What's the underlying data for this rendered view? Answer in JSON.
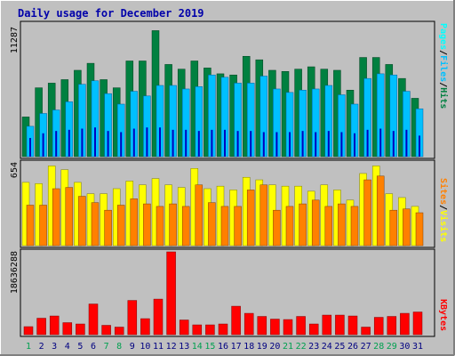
{
  "title": "Daily usage for December 2019",
  "colors": {
    "background": "#c0c0c0",
    "plot_background": "#c0c0c0",
    "title": "#0000aa",
    "hits": "#008040",
    "files": "#00c0ff",
    "pages": "#00ffff",
    "visits": "#ffff00",
    "sites": "#ff8000",
    "kbytes": "#ff0000",
    "weekend_label": "#00a050",
    "weekday_label": "#000080"
  },
  "chart_data": [
    {
      "type": "bar",
      "panel": "hits-files-pages",
      "ymax_label": "11287",
      "ylim": [
        0,
        11287
      ],
      "legend": [
        "Pages",
        "/",
        "Files",
        "/",
        "Hits"
      ],
      "categories": [
        "1",
        "2",
        "3",
        "4",
        "5",
        "6",
        "7",
        "8",
        "9",
        "10",
        "11",
        "12",
        "13",
        "14",
        "15",
        "16",
        "17",
        "18",
        "19",
        "20",
        "21",
        "22",
        "23",
        "24",
        "25",
        "26",
        "27",
        "28",
        "29",
        "30",
        "31"
      ],
      "series": [
        {
          "name": "Hits",
          "values": [
            3400,
            5900,
            6300,
            6600,
            7400,
            8000,
            6600,
            5900,
            8200,
            8200,
            10800,
            7900,
            7500,
            8200,
            7600,
            7100,
            7000,
            8600,
            8300,
            7400,
            7300,
            7500,
            7700,
            7500,
            7400,
            5700,
            8500,
            8500,
            7900,
            6700,
            5000
          ]
        },
        {
          "name": "Files",
          "values": [
            2600,
            3700,
            4000,
            4700,
            6200,
            6500,
            5400,
            4500,
            5600,
            5200,
            6100,
            6100,
            5800,
            6000,
            7000,
            6800,
            6300,
            6300,
            6900,
            5800,
            5500,
            5700,
            5800,
            6100,
            5300,
            4500,
            6700,
            7100,
            7000,
            5600,
            4100
          ]
        },
        {
          "name": "Pages",
          "values": [
            1600,
            2000,
            2200,
            2300,
            2400,
            2500,
            2200,
            2100,
            2400,
            2500,
            2500,
            2300,
            2300,
            2200,
            2300,
            2300,
            2200,
            2200,
            2100,
            2100,
            2100,
            2200,
            2100,
            2200,
            2100,
            2000,
            2300,
            2400,
            2200,
            2300,
            1800
          ]
        }
      ]
    },
    {
      "type": "bar",
      "panel": "visits-sites",
      "ymax_label": "654",
      "ylim": [
        0,
        654
      ],
      "legend": [
        "Sites",
        "/",
        "Visits"
      ],
      "categories": [
        "1",
        "2",
        "3",
        "4",
        "5",
        "6",
        "7",
        "8",
        "9",
        "10",
        "11",
        "12",
        "13",
        "14",
        "15",
        "16",
        "17",
        "18",
        "19",
        "20",
        "21",
        "22",
        "23",
        "24",
        "25",
        "26",
        "27",
        "28",
        "29",
        "30",
        "31"
      ],
      "series": [
        {
          "name": "Visits",
          "values": [
            500,
            490,
            630,
            600,
            500,
            410,
            410,
            450,
            510,
            480,
            530,
            480,
            460,
            610,
            450,
            470,
            440,
            540,
            520,
            480,
            470,
            470,
            430,
            480,
            440,
            360,
            570,
            630,
            410,
            380,
            310
          ]
        },
        {
          "name": "Sites",
          "values": [
            320,
            320,
            450,
            460,
            390,
            340,
            280,
            320,
            370,
            330,
            310,
            330,
            310,
            480,
            340,
            310,
            310,
            440,
            480,
            280,
            310,
            330,
            360,
            310,
            330,
            310,
            520,
            550,
            280,
            290,
            260
          ]
        }
      ]
    },
    {
      "type": "bar",
      "panel": "kbytes",
      "ymax_label": "18636288",
      "ylim": [
        0,
        18636288
      ],
      "legend": [
        "KBytes"
      ],
      "categories": [
        "1",
        "2",
        "3",
        "4",
        "5",
        "6",
        "7",
        "8",
        "9",
        "10",
        "11",
        "12",
        "13",
        "14",
        "15",
        "16",
        "17",
        "18",
        "19",
        "20",
        "21",
        "22",
        "23",
        "24",
        "25",
        "26",
        "27",
        "28",
        "29",
        "30",
        "31"
      ],
      "series": [
        {
          "name": "KBytes",
          "values": [
            1800000,
            3700000,
            4200000,
            2700000,
            2400000,
            6900000,
            2100000,
            1700000,
            7700000,
            3600000,
            8000000,
            18636288,
            3300000,
            2200000,
            2200000,
            2400000,
            6400000,
            4800000,
            4100000,
            3500000,
            3400000,
            4100000,
            2400000,
            4400000,
            4400000,
            4200000,
            1700000,
            3900000,
            4100000,
            4800000,
            5100000
          ]
        }
      ]
    }
  ],
  "x_labels": [
    "1",
    "2",
    "3",
    "4",
    "5",
    "6",
    "7",
    "8",
    "9",
    "10",
    "11",
    "12",
    "13",
    "14",
    "15",
    "16",
    "17",
    "18",
    "19",
    "20",
    "21",
    "22",
    "23",
    "24",
    "25",
    "26",
    "27",
    "28",
    "29",
    "30",
    "31"
  ],
  "weekend_days": [
    "1",
    "7",
    "8",
    "14",
    "15",
    "21",
    "22",
    "28",
    "29"
  ]
}
